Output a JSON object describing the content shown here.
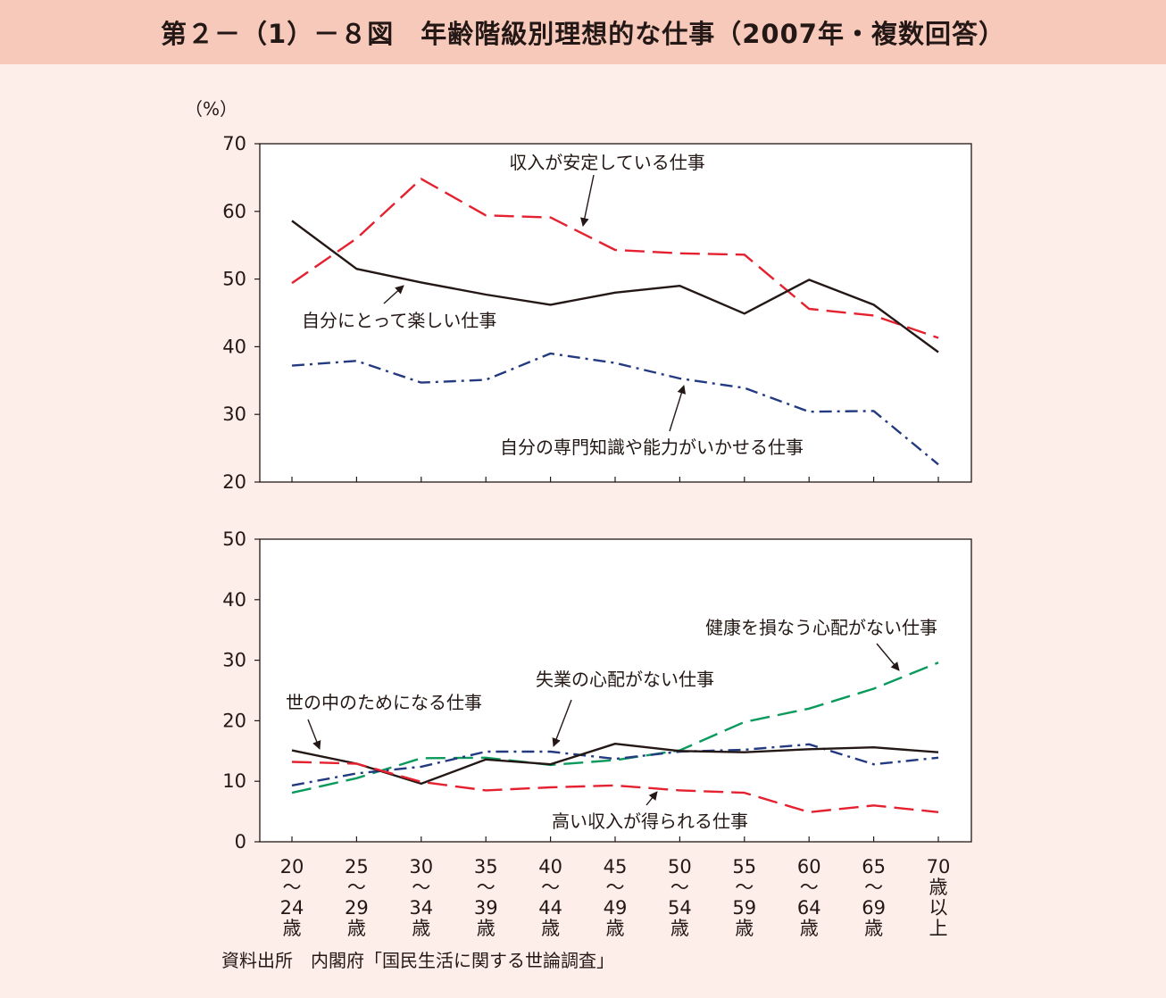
{
  "title": "第２－（1）－８図　年齢階級別理想的な仕事（2007年・複数回答）",
  "source": "資料出所　内閣府「国民生活に関する世論調査」",
  "colors": {
    "background": "#fdeeea",
    "title_bar": "#f7c9bb",
    "black": "#231815",
    "red": "#e5202f",
    "navy": "#233a80",
    "green": "#0a9a5c"
  },
  "chart_data": [
    {
      "type": "line",
      "unit_label": "（%）",
      "ylim": [
        20,
        70
      ],
      "yticks": [
        "20",
        "30",
        "40",
        "50",
        "60",
        "70"
      ],
      "categories": [
        "20〜24歳",
        "25〜29歳",
        "30〜34歳",
        "35〜39歳",
        "40〜44歳",
        "45〜49歳",
        "50〜54歳",
        "55〜59歳",
        "60〜64歳",
        "65〜69歳",
        "70歳以上"
      ],
      "series": [
        {
          "name": "収入が安定している仕事",
          "style": "dashed",
          "color": "#e5202f",
          "values": [
            49.4,
            56.0,
            64.8,
            59.4,
            59.1,
            54.3,
            53.8,
            53.6,
            45.6,
            44.6,
            41.3
          ]
        },
        {
          "name": "自分にとって楽しい仕事",
          "style": "solid",
          "color": "#231815",
          "values": [
            58.6,
            51.5,
            49.5,
            47.7,
            46.2,
            48.0,
            49.0,
            44.9,
            49.9,
            46.2,
            39.2
          ]
        },
        {
          "name": "自分の専門知識や能力がいかせる仕事",
          "style": "dashdot",
          "color": "#233a80",
          "values": [
            37.2,
            37.9,
            34.7,
            35.1,
            39.0,
            37.6,
            35.3,
            33.9,
            30.4,
            30.5,
            22.6
          ]
        }
      ]
    },
    {
      "type": "line",
      "ylim": [
        0,
        50
      ],
      "yticks": [
        "0",
        "10",
        "20",
        "30",
        "40",
        "50"
      ],
      "categories": [
        "20〜24歳",
        "25〜29歳",
        "30〜34歳",
        "35〜39歳",
        "40〜44歳",
        "45〜49歳",
        "50〜54歳",
        "55〜59歳",
        "60〜64歳",
        "65〜69歳",
        "70歳以上"
      ],
      "series": [
        {
          "name": "健康を損なう心配がない仕事",
          "style": "dashed",
          "color": "#0a9a5c",
          "values": [
            8.1,
            10.5,
            13.8,
            13.9,
            12.7,
            13.5,
            15.1,
            19.8,
            22.0,
            25.3,
            29.6
          ]
        },
        {
          "name": "失業の心配がない仕事",
          "style": "dashdot",
          "color": "#233a80",
          "values": [
            9.3,
            11.3,
            12.4,
            14.9,
            14.9,
            13.7,
            14.9,
            15.2,
            16.1,
            12.8,
            13.9
          ]
        },
        {
          "name": "世の中のためになる仕事",
          "style": "solid",
          "color": "#231815",
          "values": [
            15.1,
            12.9,
            9.6,
            13.6,
            12.8,
            16.2,
            15.0,
            14.8,
            15.3,
            15.6,
            14.8
          ]
        },
        {
          "name": "高い収入が得られる仕事",
          "style": "dashed",
          "color": "#e5202f",
          "values": [
            13.2,
            12.9,
            9.9,
            8.5,
            9.0,
            9.3,
            8.5,
            8.1,
            4.9,
            6.0,
            4.9
          ]
        }
      ]
    }
  ],
  "x_labels": [
    [
      "20",
      "〜",
      "24",
      "歳"
    ],
    [
      "25",
      "〜",
      "29",
      "歳"
    ],
    [
      "30",
      "〜",
      "34",
      "歳"
    ],
    [
      "35",
      "〜",
      "39",
      "歳"
    ],
    [
      "40",
      "〜",
      "44",
      "歳"
    ],
    [
      "45",
      "〜",
      "49",
      "歳"
    ],
    [
      "50",
      "〜",
      "54",
      "歳"
    ],
    [
      "55",
      "〜",
      "59",
      "歳"
    ],
    [
      "60",
      "〜",
      "64",
      "歳"
    ],
    [
      "65",
      "〜",
      "69",
      "歳"
    ],
    [
      "70",
      "歳",
      "以",
      "上"
    ]
  ]
}
